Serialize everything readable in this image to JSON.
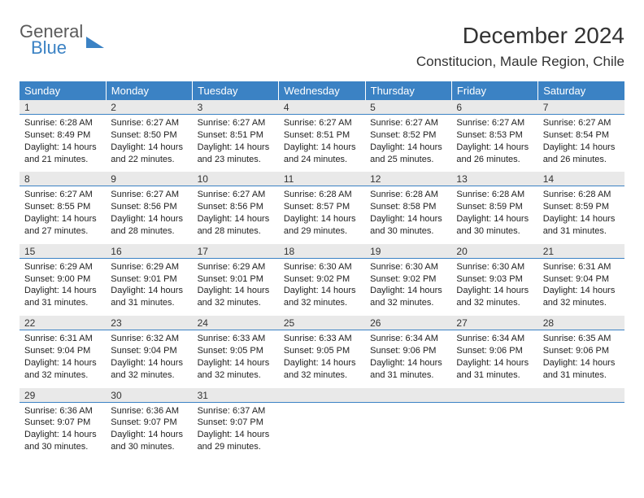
{
  "brand": {
    "line1": "General",
    "line2": "Blue"
  },
  "title": "December 2024",
  "location": "Constitucion, Maule Region, Chile",
  "colors": {
    "header_bg": "#3b82c4",
    "header_text": "#ffffff",
    "daynum_bg": "#e9e9e9",
    "daynum_border": "#3b82c4",
    "body_text": "#222222",
    "page_bg": "#ffffff"
  },
  "weekdays": [
    "Sunday",
    "Monday",
    "Tuesday",
    "Wednesday",
    "Thursday",
    "Friday",
    "Saturday"
  ],
  "weeks": [
    {
      "nums": [
        "1",
        "2",
        "3",
        "4",
        "5",
        "6",
        "7"
      ],
      "cells": [
        {
          "sunrise": "6:28 AM",
          "sunset": "8:49 PM",
          "daylight": "14 hours and 21 minutes."
        },
        {
          "sunrise": "6:27 AM",
          "sunset": "8:50 PM",
          "daylight": "14 hours and 22 minutes."
        },
        {
          "sunrise": "6:27 AM",
          "sunset": "8:51 PM",
          "daylight": "14 hours and 23 minutes."
        },
        {
          "sunrise": "6:27 AM",
          "sunset": "8:51 PM",
          "daylight": "14 hours and 24 minutes."
        },
        {
          "sunrise": "6:27 AM",
          "sunset": "8:52 PM",
          "daylight": "14 hours and 25 minutes."
        },
        {
          "sunrise": "6:27 AM",
          "sunset": "8:53 PM",
          "daylight": "14 hours and 26 minutes."
        },
        {
          "sunrise": "6:27 AM",
          "sunset": "8:54 PM",
          "daylight": "14 hours and 26 minutes."
        }
      ]
    },
    {
      "nums": [
        "8",
        "9",
        "10",
        "11",
        "12",
        "13",
        "14"
      ],
      "cells": [
        {
          "sunrise": "6:27 AM",
          "sunset": "8:55 PM",
          "daylight": "14 hours and 27 minutes."
        },
        {
          "sunrise": "6:27 AM",
          "sunset": "8:56 PM",
          "daylight": "14 hours and 28 minutes."
        },
        {
          "sunrise": "6:27 AM",
          "sunset": "8:56 PM",
          "daylight": "14 hours and 28 minutes."
        },
        {
          "sunrise": "6:28 AM",
          "sunset": "8:57 PM",
          "daylight": "14 hours and 29 minutes."
        },
        {
          "sunrise": "6:28 AM",
          "sunset": "8:58 PM",
          "daylight": "14 hours and 30 minutes."
        },
        {
          "sunrise": "6:28 AM",
          "sunset": "8:59 PM",
          "daylight": "14 hours and 30 minutes."
        },
        {
          "sunrise": "6:28 AM",
          "sunset": "8:59 PM",
          "daylight": "14 hours and 31 minutes."
        }
      ]
    },
    {
      "nums": [
        "15",
        "16",
        "17",
        "18",
        "19",
        "20",
        "21"
      ],
      "cells": [
        {
          "sunrise": "6:29 AM",
          "sunset": "9:00 PM",
          "daylight": "14 hours and 31 minutes."
        },
        {
          "sunrise": "6:29 AM",
          "sunset": "9:01 PM",
          "daylight": "14 hours and 31 minutes."
        },
        {
          "sunrise": "6:29 AM",
          "sunset": "9:01 PM",
          "daylight": "14 hours and 32 minutes."
        },
        {
          "sunrise": "6:30 AM",
          "sunset": "9:02 PM",
          "daylight": "14 hours and 32 minutes."
        },
        {
          "sunrise": "6:30 AM",
          "sunset": "9:02 PM",
          "daylight": "14 hours and 32 minutes."
        },
        {
          "sunrise": "6:30 AM",
          "sunset": "9:03 PM",
          "daylight": "14 hours and 32 minutes."
        },
        {
          "sunrise": "6:31 AM",
          "sunset": "9:04 PM",
          "daylight": "14 hours and 32 minutes."
        }
      ]
    },
    {
      "nums": [
        "22",
        "23",
        "24",
        "25",
        "26",
        "27",
        "28"
      ],
      "cells": [
        {
          "sunrise": "6:31 AM",
          "sunset": "9:04 PM",
          "daylight": "14 hours and 32 minutes."
        },
        {
          "sunrise": "6:32 AM",
          "sunset": "9:04 PM",
          "daylight": "14 hours and 32 minutes."
        },
        {
          "sunrise": "6:33 AM",
          "sunset": "9:05 PM",
          "daylight": "14 hours and 32 minutes."
        },
        {
          "sunrise": "6:33 AM",
          "sunset": "9:05 PM",
          "daylight": "14 hours and 32 minutes."
        },
        {
          "sunrise": "6:34 AM",
          "sunset": "9:06 PM",
          "daylight": "14 hours and 31 minutes."
        },
        {
          "sunrise": "6:34 AM",
          "sunset": "9:06 PM",
          "daylight": "14 hours and 31 minutes."
        },
        {
          "sunrise": "6:35 AM",
          "sunset": "9:06 PM",
          "daylight": "14 hours and 31 minutes."
        }
      ]
    },
    {
      "nums": [
        "29",
        "30",
        "31",
        "",
        "",
        "",
        ""
      ],
      "cells": [
        {
          "sunrise": "6:36 AM",
          "sunset": "9:07 PM",
          "daylight": "14 hours and 30 minutes."
        },
        {
          "sunrise": "6:36 AM",
          "sunset": "9:07 PM",
          "daylight": "14 hours and 30 minutes."
        },
        {
          "sunrise": "6:37 AM",
          "sunset": "9:07 PM",
          "daylight": "14 hours and 29 minutes."
        },
        null,
        null,
        null,
        null
      ]
    }
  ],
  "labels": {
    "sunrise": "Sunrise:",
    "sunset": "Sunset:",
    "daylight": "Daylight:"
  }
}
